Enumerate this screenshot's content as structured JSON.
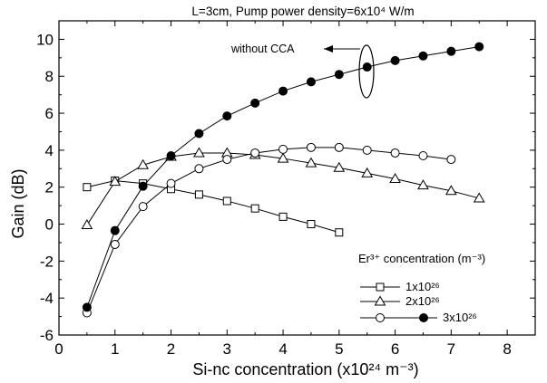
{
  "chart_data": {
    "type": "line",
    "title": "L=3cm, Pump power density=6x10⁴ W/m",
    "xlabel": "Si-nc concentration (x10²⁴ m⁻³)",
    "ylabel": "Gain (dB)",
    "xlim": [
      0,
      8.5
    ],
    "ylim": [
      -6,
      11
    ],
    "x_ticks": [
      "0",
      "1",
      "2",
      "3",
      "4",
      "5",
      "6",
      "7",
      "8"
    ],
    "y_ticks": [
      "-6",
      "-4",
      "-2",
      "0",
      "2",
      "4",
      "6",
      "8",
      "10"
    ],
    "grid": false,
    "legend_title": "Er³⁺ concentration (m⁻³)",
    "legend_position": "bottom-right",
    "annotation": "without CCA",
    "series": [
      {
        "name": "1x10²⁶",
        "marker": "open-square",
        "x": [
          0.5,
          1.0,
          1.5,
          2.0,
          2.5,
          3.0,
          3.5,
          4.0,
          4.5,
          5.0
        ],
        "y": [
          2.0,
          2.35,
          2.2,
          1.9,
          1.6,
          1.25,
          0.85,
          0.4,
          0.0,
          -0.45
        ]
      },
      {
        "name": "2x10²⁶",
        "marker": "open-triangle",
        "x": [
          0.5,
          1.0,
          1.5,
          2.0,
          2.5,
          3.0,
          3.5,
          4.0,
          4.5,
          5.0,
          5.5,
          6.0,
          6.5,
          7.0,
          7.5
        ],
        "y": [
          -0.05,
          2.3,
          3.2,
          3.65,
          3.85,
          3.85,
          3.75,
          3.55,
          3.3,
          3.05,
          2.75,
          2.45,
          2.1,
          1.8,
          1.4
        ]
      },
      {
        "name": "3x10²⁶",
        "marker": "open-circle",
        "x": [
          0.5,
          1.0,
          1.5,
          2.0,
          2.5,
          3.0,
          3.5,
          4.0,
          4.5,
          5.0,
          5.5,
          6.0,
          6.5,
          7.0
        ],
        "y": [
          -4.8,
          -1.1,
          0.95,
          2.2,
          3.0,
          3.5,
          3.85,
          4.05,
          4.15,
          4.15,
          4.0,
          3.85,
          3.7,
          3.5
        ]
      },
      {
        "name": "",
        "marker": "filled-circle",
        "x": [
          0.5,
          1.0,
          1.5,
          2.0,
          2.5,
          3.0,
          3.5,
          4.0,
          4.5,
          5.0,
          5.5,
          6.0,
          6.5,
          7.0,
          7.5
        ],
        "y": [
          -4.5,
          -0.35,
          2.05,
          3.7,
          4.9,
          5.85,
          6.55,
          7.2,
          7.7,
          8.1,
          8.5,
          8.85,
          9.1,
          9.35,
          9.6
        ]
      }
    ]
  }
}
